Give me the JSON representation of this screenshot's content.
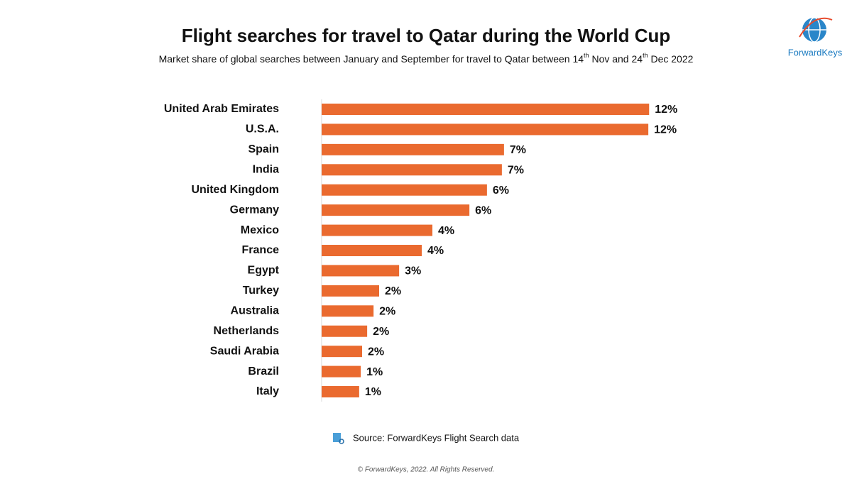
{
  "chart_data": {
    "type": "hbar",
    "title": "Flight searches for travel to Qatar during the World Cup",
    "subtitle_parts": [
      "Market share of global searches between January and September for travel to Qatar between 14",
      "th",
      " Nov and 24",
      "th",
      " Dec 2022"
    ],
    "categories": [
      "United Arab Emirates",
      "U.S.A.",
      "Spain",
      "India",
      "United Kingdom",
      "Germany",
      "Mexico",
      "France",
      "Egypt",
      "Turkey",
      "Australia",
      "Netherlands",
      "Saudi Arabia",
      "Brazil",
      "Italy"
    ],
    "values": [
      12.3,
      12.27,
      6.85,
      6.77,
      6.21,
      5.55,
      4.16,
      3.76,
      2.91,
      2.16,
      1.95,
      1.71,
      1.52,
      1.47,
      1.41
    ],
    "value_labels": [
      "12%",
      "12%",
      "7%",
      "7%",
      "6%",
      "6%",
      "4%",
      "4%",
      "3%",
      "2%",
      "2%",
      "2%",
      "2%",
      "1%",
      "1%"
    ],
    "color": "#ea6a2f",
    "xlim": [
      0,
      14
    ],
    "source": "Source: ForwardKeys Flight Search data",
    "copyright": "© ForwardKeys, 2022. All Rights Reserved.",
    "logo": "ForwardKeys"
  }
}
